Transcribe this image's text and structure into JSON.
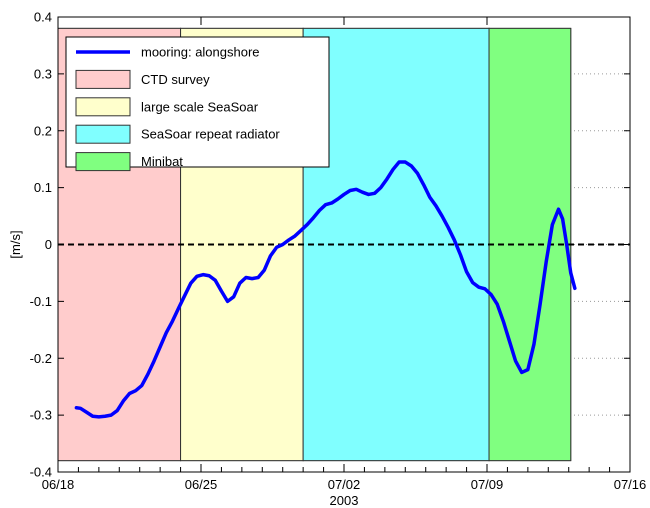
{
  "chart_data": {
    "type": "line",
    "title": "",
    "xlabel": "2003",
    "ylabel": "[m/s]",
    "xlim": [
      0,
      28
    ],
    "ylim": [
      -0.4,
      0.4
    ],
    "x_ticks": [
      {
        "value": 0,
        "label": "06/18"
      },
      {
        "value": 7,
        "label": "06/25"
      },
      {
        "value": 14,
        "label": "07/02"
      },
      {
        "value": 21,
        "label": "07/09"
      },
      {
        "value": 28,
        "label": "07/16"
      }
    ],
    "x_minor_ticks": [
      1,
      2,
      3,
      4,
      5,
      6,
      8,
      9,
      10,
      11,
      12,
      13,
      15,
      16,
      17,
      18,
      19,
      20,
      22,
      23,
      24,
      25,
      26,
      27
    ],
    "y_ticks": [
      -0.4,
      -0.3,
      -0.2,
      -0.1,
      0,
      0.1,
      0.2,
      0.3,
      0.4
    ],
    "y_tick_labels": [
      "-0.4",
      "-0.3",
      "-0.2",
      "-0.1",
      "0",
      "0.1",
      "0.2",
      "0.3",
      "0.4"
    ],
    "y_grid": true,
    "legend_position": "top-left",
    "periods": [
      {
        "name": "CTD survey",
        "start": 0.0,
        "end": 6.0,
        "color": "#ffcccc"
      },
      {
        "name": "large scale SeaSoar",
        "start": 6.0,
        "end": 12.0,
        "color": "#ffffcc"
      },
      {
        "name": "SeaSoar repeat radiator",
        "start": 12.0,
        "end": 21.1,
        "color": "#80ffff"
      },
      {
        "name": "Minibat",
        "start": 21.1,
        "end": 25.1,
        "color": "#80ff80"
      }
    ],
    "period_y_range": [
      -0.38,
      0.38
    ],
    "zero_line": {
      "y": 0,
      "style": "dashed",
      "color": "#000000"
    },
    "series": [
      {
        "name": "mooring: alongshore",
        "color": "#0000ff",
        "points": [
          [
            0.9,
            -0.287
          ],
          [
            1.1,
            -0.288
          ],
          [
            1.4,
            -0.295
          ],
          [
            1.7,
            -0.302
          ],
          [
            2.0,
            -0.303
          ],
          [
            2.3,
            -0.302
          ],
          [
            2.6,
            -0.3
          ],
          [
            2.9,
            -0.292
          ],
          [
            3.2,
            -0.275
          ],
          [
            3.5,
            -0.262
          ],
          [
            3.8,
            -0.257
          ],
          [
            4.1,
            -0.248
          ],
          [
            4.4,
            -0.228
          ],
          [
            4.7,
            -0.205
          ],
          [
            5.0,
            -0.18
          ],
          [
            5.3,
            -0.155
          ],
          [
            5.6,
            -0.135
          ],
          [
            5.9,
            -0.112
          ],
          [
            6.2,
            -0.09
          ],
          [
            6.5,
            -0.068
          ],
          [
            6.8,
            -0.056
          ],
          [
            7.1,
            -0.053
          ],
          [
            7.4,
            -0.055
          ],
          [
            7.7,
            -0.063
          ],
          [
            8.0,
            -0.082
          ],
          [
            8.3,
            -0.1
          ],
          [
            8.6,
            -0.092
          ],
          [
            8.9,
            -0.068
          ],
          [
            9.2,
            -0.058
          ],
          [
            9.5,
            -0.06
          ],
          [
            9.8,
            -0.058
          ],
          [
            10.1,
            -0.045
          ],
          [
            10.4,
            -0.02
          ],
          [
            10.7,
            -0.005
          ],
          [
            11.0,
            0.0
          ],
          [
            11.3,
            0.008
          ],
          [
            11.6,
            0.015
          ],
          [
            11.9,
            0.025
          ],
          [
            12.2,
            0.035
          ],
          [
            12.5,
            0.047
          ],
          [
            12.8,
            0.06
          ],
          [
            13.1,
            0.07
          ],
          [
            13.4,
            0.073
          ],
          [
            13.7,
            0.08
          ],
          [
            14.0,
            0.088
          ],
          [
            14.3,
            0.095
          ],
          [
            14.6,
            0.097
          ],
          [
            14.9,
            0.092
          ],
          [
            15.2,
            0.088
          ],
          [
            15.5,
            0.09
          ],
          [
            15.8,
            0.1
          ],
          [
            16.1,
            0.115
          ],
          [
            16.4,
            0.132
          ],
          [
            16.7,
            0.145
          ],
          [
            17.0,
            0.145
          ],
          [
            17.3,
            0.138
          ],
          [
            17.6,
            0.125
          ],
          [
            17.9,
            0.105
          ],
          [
            18.2,
            0.083
          ],
          [
            18.5,
            0.068
          ],
          [
            18.8,
            0.05
          ],
          [
            19.1,
            0.03
          ],
          [
            19.4,
            0.008
          ],
          [
            19.7,
            -0.018
          ],
          [
            20.0,
            -0.048
          ],
          [
            20.3,
            -0.067
          ],
          [
            20.6,
            -0.075
          ],
          [
            20.9,
            -0.078
          ],
          [
            21.2,
            -0.088
          ],
          [
            21.5,
            -0.105
          ],
          [
            21.8,
            -0.135
          ],
          [
            22.1,
            -0.17
          ],
          [
            22.4,
            -0.205
          ],
          [
            22.7,
            -0.225
          ],
          [
            23.0,
            -0.22
          ],
          [
            23.3,
            -0.175
          ],
          [
            23.6,
            -0.105
          ],
          [
            23.9,
            -0.03
          ],
          [
            24.2,
            0.035
          ],
          [
            24.5,
            0.062
          ],
          [
            24.7,
            0.045
          ],
          [
            24.9,
            0.0
          ],
          [
            25.1,
            -0.05
          ],
          [
            25.3,
            -0.077
          ]
        ]
      }
    ]
  }
}
